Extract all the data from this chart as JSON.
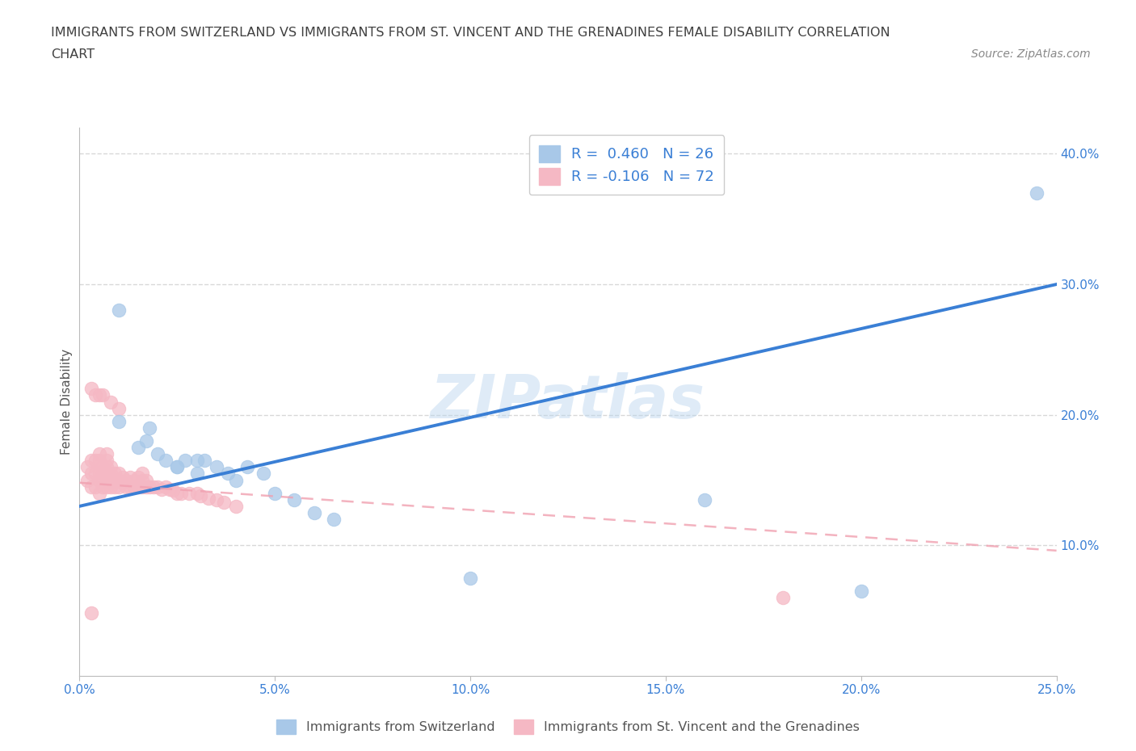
{
  "title_line1": "IMMIGRANTS FROM SWITZERLAND VS IMMIGRANTS FROM ST. VINCENT AND THE GRENADINES FEMALE DISABILITY CORRELATION",
  "title_line2": "CHART",
  "source_text": "Source: ZipAtlas.com",
  "ylabel": "Female Disability",
  "xlabel": "",
  "xlim": [
    0.0,
    0.25
  ],
  "ylim": [
    0.0,
    0.42
  ],
  "xticks": [
    0.0,
    0.05,
    0.1,
    0.15,
    0.2,
    0.25
  ],
  "yticks_right": [
    0.1,
    0.2,
    0.3,
    0.4
  ],
  "ytick_labels_right": [
    "10.0%",
    "20.0%",
    "30.0%",
    "40.0%"
  ],
  "xtick_labels": [
    "0.0%",
    "5.0%",
    "10.0%",
    "15.0%",
    "20.0%",
    "25.0%"
  ],
  "watermark": "ZIPatlas",
  "color_switzerland": "#a8c8e8",
  "color_stvincent": "#f5b8c4",
  "line_color_switzerland": "#3a7fd5",
  "line_color_stvincent": "#f0a0b0",
  "R_switzerland": 0.46,
  "N_switzerland": 26,
  "R_stvincent": -0.106,
  "N_stvincent": 72,
  "legend_label_switzerland": "Immigrants from Switzerland",
  "legend_label_stvincent": "Immigrants from St. Vincent and the Grenadines",
  "switzerland_x": [
    0.01,
    0.015,
    0.017,
    0.02,
    0.022,
    0.025,
    0.027,
    0.03,
    0.032,
    0.035,
    0.038,
    0.04,
    0.043,
    0.047,
    0.05,
    0.055,
    0.06,
    0.065,
    0.01,
    0.018,
    0.025,
    0.03,
    0.1,
    0.16,
    0.2,
    0.245
  ],
  "switzerland_y": [
    0.195,
    0.175,
    0.18,
    0.17,
    0.165,
    0.16,
    0.165,
    0.155,
    0.165,
    0.16,
    0.155,
    0.15,
    0.16,
    0.155,
    0.14,
    0.135,
    0.125,
    0.12,
    0.28,
    0.19,
    0.16,
    0.165,
    0.075,
    0.135,
    0.065,
    0.37
  ],
  "stvincent_x": [
    0.002,
    0.002,
    0.003,
    0.003,
    0.003,
    0.004,
    0.004,
    0.004,
    0.005,
    0.005,
    0.005,
    0.005,
    0.005,
    0.006,
    0.006,
    0.006,
    0.006,
    0.007,
    0.007,
    0.007,
    0.007,
    0.007,
    0.007,
    0.008,
    0.008,
    0.008,
    0.008,
    0.009,
    0.009,
    0.009,
    0.01,
    0.01,
    0.01,
    0.011,
    0.011,
    0.012,
    0.012,
    0.013,
    0.013,
    0.014,
    0.014,
    0.015,
    0.015,
    0.016,
    0.016,
    0.016,
    0.017,
    0.017,
    0.018,
    0.019,
    0.02,
    0.021,
    0.022,
    0.023,
    0.024,
    0.025,
    0.026,
    0.028,
    0.03,
    0.031,
    0.033,
    0.035,
    0.037,
    0.04,
    0.005,
    0.006,
    0.008,
    0.01,
    0.003,
    0.004,
    0.18,
    0.003
  ],
  "stvincent_y": [
    0.15,
    0.16,
    0.145,
    0.155,
    0.165,
    0.145,
    0.155,
    0.165,
    0.14,
    0.15,
    0.155,
    0.165,
    0.17,
    0.145,
    0.15,
    0.155,
    0.16,
    0.145,
    0.15,
    0.155,
    0.16,
    0.165,
    0.17,
    0.145,
    0.15,
    0.155,
    0.16,
    0.145,
    0.15,
    0.155,
    0.145,
    0.15,
    0.155,
    0.148,
    0.152,
    0.145,
    0.15,
    0.145,
    0.152,
    0.145,
    0.15,
    0.145,
    0.152,
    0.145,
    0.15,
    0.155,
    0.145,
    0.15,
    0.145,
    0.145,
    0.145,
    0.143,
    0.145,
    0.143,
    0.142,
    0.14,
    0.14,
    0.14,
    0.14,
    0.138,
    0.136,
    0.135,
    0.133,
    0.13,
    0.215,
    0.215,
    0.21,
    0.205,
    0.22,
    0.215,
    0.06,
    0.048
  ],
  "swiss_trend_x0": 0.0,
  "swiss_trend_y0": 0.13,
  "swiss_trend_x1": 0.25,
  "swiss_trend_y1": 0.3,
  "stv_trend_x0": 0.0,
  "stv_trend_y0": 0.148,
  "stv_trend_x1": 0.25,
  "stv_trend_y1": 0.096,
  "background_color": "#ffffff",
  "grid_color": "#d8d8d8",
  "title_color": "#404040",
  "axis_label_color": "#555555",
  "tick_label_color": "#3a7fd5"
}
